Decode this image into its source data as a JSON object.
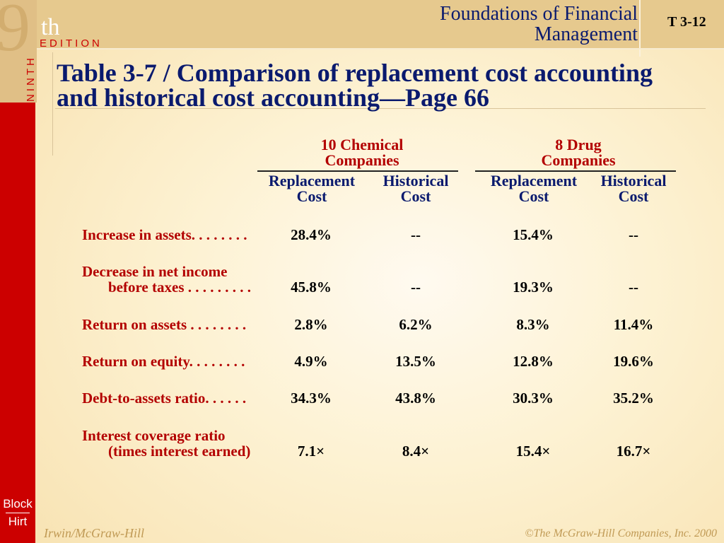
{
  "header": {
    "edition_number": "9",
    "edition_suffix": "th",
    "edition_word": "EDITION",
    "edition_vertical": "NINTH",
    "product_title_line1": "Foundations of Financial",
    "product_title_line2": "Management",
    "slide_id": "T 3-12"
  },
  "title": {
    "line1": "Table 3-7 / Comparison of replacement cost accounting",
    "line2": "and historical cost accounting—Page 66"
  },
  "groups": [
    {
      "line1": "10 Chemical",
      "line2": "Companies"
    },
    {
      "line1": "8 Drug",
      "line2": "Companies"
    }
  ],
  "columns": [
    {
      "line1": "Replacement",
      "line2": "Cost"
    },
    {
      "line1": "Historical",
      "line2": "Cost"
    },
    {
      "line1": "Replacement",
      "line2": "Cost"
    },
    {
      "line1": "Historical",
      "line2": "Cost"
    }
  ],
  "rows": [
    {
      "label1": "Increase in assets. . . . . . . .",
      "label2": "",
      "values": [
        "28.4%",
        "--",
        "15.4%",
        "--"
      ]
    },
    {
      "label1": "Decrease in net income",
      "label2": "before taxes . . . . . . . . .",
      "values": [
        "45.8%",
        "--",
        "19.3%",
        "--"
      ]
    },
    {
      "label1": "Return on assets . . . . . . . .",
      "label2": "",
      "values": [
        "2.8%",
        "6.2%",
        "8.3%",
        "11.4%"
      ]
    },
    {
      "label1": "Return on equity. . . . . . . .",
      "label2": "",
      "values": [
        "4.9%",
        "13.5%",
        "12.8%",
        "19.6%"
      ]
    },
    {
      "label1": "Debt-to-assets ratio. . . . . .",
      "label2": "",
      "values": [
        "34.3%",
        "43.8%",
        "30.3%",
        "35.2%"
      ]
    },
    {
      "label1": "Interest coverage ratio",
      "label2": "(times interest earned)",
      "values": [
        "7.1×",
        "8.4×",
        "15.4×",
        "16.7×"
      ]
    }
  ],
  "logo": {
    "line1": "Block",
    "line2": "Hirt"
  },
  "footer": {
    "publisher": "Irwin/McGraw-Hill",
    "copyright": "©The McGraw-Hill Companies, Inc. 2000"
  },
  "colors": {
    "title_blue": "#0a1a6e",
    "label_red": "#b30000",
    "band_red": "#cc0000",
    "header_tan": "#e6c98e",
    "footer_gold": "#c09a55"
  }
}
